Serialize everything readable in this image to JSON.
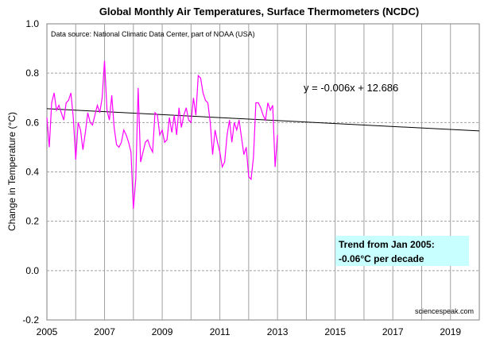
{
  "chart_data": {
    "type": "line",
    "title": "Global Monthly Air Temperatures, Surface Thermometers (NCDC)",
    "ylabel": "Change in Temperature  (°C)",
    "xlabel": "",
    "xlim": [
      2005,
      2020
    ],
    "ylim": [
      -0.2,
      1.0
    ],
    "x_ticks": [
      "2005",
      "2007",
      "2009",
      "2011",
      "2013",
      "2015",
      "2017",
      "2019"
    ],
    "y_ticks": [
      "-0.2",
      "0.0",
      "0.2",
      "0.4",
      "0.6",
      "0.8",
      "1.0"
    ],
    "grid": true,
    "source_note": "Data source: National Climatic Data Center, part of NOAA (USA)",
    "equation": "y = -0.006x + 12.686",
    "trend_box": {
      "line1": "Trend from Jan 2005:",
      "line2": "-0.06°C per decade"
    },
    "credit": "sciencespeak.com",
    "colors": {
      "series": "#ff00ff",
      "trend": "#000000",
      "trend_box_bg": "#c8ffff",
      "grid": "#a0a0a0"
    },
    "series": [
      {
        "start": "2005-01",
        "values": [
          0.62,
          0.5,
          0.68,
          0.72,
          0.65,
          0.67,
          0.64,
          0.61,
          0.68,
          0.69,
          0.72,
          0.62,
          0.45,
          0.6,
          0.57,
          0.49,
          0.56,
          0.64,
          0.6,
          0.59,
          0.63,
          0.67,
          0.64,
          0.7,
          0.85,
          0.65,
          0.61,
          0.71,
          0.58,
          0.51,
          0.5,
          0.52,
          0.57,
          0.55,
          0.52,
          0.48,
          0.25,
          0.37,
          0.74,
          0.44,
          0.48,
          0.52,
          0.53,
          0.5,
          0.48,
          0.64,
          0.63,
          0.55,
          0.57,
          0.52,
          0.53,
          0.62,
          0.56,
          0.63,
          0.55,
          0.66,
          0.58,
          0.63,
          0.66,
          0.61,
          0.6,
          0.7,
          0.63,
          0.79,
          0.78,
          0.72,
          0.69,
          0.68,
          0.6,
          0.47,
          0.57,
          0.52,
          0.48,
          0.42,
          0.44,
          0.55,
          0.61,
          0.52,
          0.6,
          0.57,
          0.61,
          0.54,
          0.47,
          0.5,
          0.38,
          0.37,
          0.46,
          0.68,
          0.68,
          0.66,
          0.63,
          0.61,
          0.68,
          0.65,
          0.67,
          0.42,
          0.55
        ]
      }
    ],
    "trend_line": {
      "slope": -0.006,
      "intercept": 12.686,
      "x_range": [
        2005,
        2020
      ]
    }
  }
}
